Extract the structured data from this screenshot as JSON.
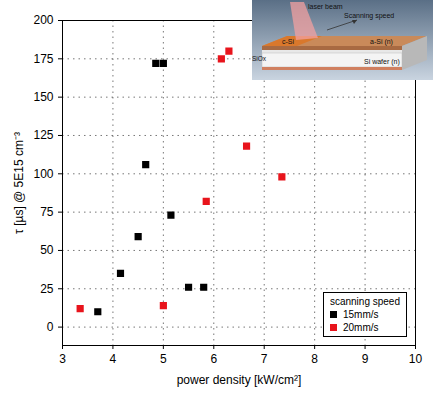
{
  "chart_data": {
    "type": "scatter",
    "x_label": "power density [kW/cm²]",
    "y_label": "τ [µs] @ 5E15 cm⁻³",
    "xlim": [
      3,
      10
    ],
    "xticks": [
      3,
      4,
      5,
      6,
      7,
      8,
      9,
      10
    ],
    "ylim": [
      -12,
      200
    ],
    "yticks": [
      0,
      25,
      50,
      75,
      100,
      125,
      150,
      175,
      200
    ],
    "grid": true,
    "legend": "lower right",
    "legend_title": "scanning speed",
    "inset_labels": [
      "laser beam",
      "Scanning speed",
      "c-Si",
      "a-Si (n)",
      "SiOx",
      "Si wafer (n)"
    ],
    "series": [
      {
        "name": "15mm/s",
        "color": "#000000",
        "marker": "square",
        "x": [
          3.7,
          4.15,
          4.5,
          4.65,
          4.85,
          5.0,
          5.15,
          5.5,
          5.8
        ],
        "values": [
          10,
          35,
          59,
          106,
          172,
          172,
          73,
          26,
          26
        ]
      },
      {
        "name": "20mm/s",
        "color": "#e8141c",
        "marker": "square",
        "x": [
          3.35,
          5.0,
          5.85,
          6.15,
          6.3,
          6.65,
          7.35
        ],
        "values": [
          12,
          14,
          82,
          175,
          180,
          118,
          98
        ]
      }
    ]
  }
}
